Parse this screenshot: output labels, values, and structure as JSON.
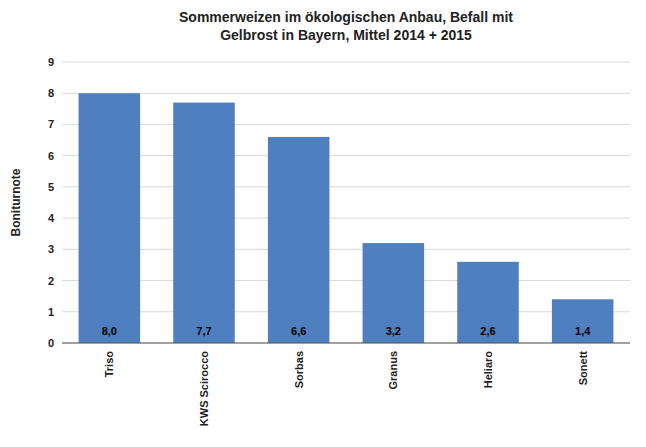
{
  "chart_data": {
    "type": "bar",
    "title": "Sommerweizen im ökologischen Anbau, Befall mit\nGelbrost in Bayern, Mittel 2014 + 2015",
    "categories": [
      "Triso",
      "KWS Scirocco",
      "Sorbas",
      "Granus",
      "Heliaro",
      "Sonett"
    ],
    "values": [
      8.0,
      7.7,
      6.6,
      3.2,
      2.6,
      1.4
    ],
    "value_labels": [
      "8,0",
      "7,7",
      "6,6",
      "3,2",
      "2,6",
      "1,4"
    ],
    "data_labels": true,
    "color": "#4f7fbf",
    "ylabel": "Boniturnote",
    "ylim": [
      0,
      9
    ],
    "yticks": [
      0,
      1,
      2,
      3,
      4,
      5,
      6,
      7,
      8,
      9
    ],
    "grid": true
  }
}
